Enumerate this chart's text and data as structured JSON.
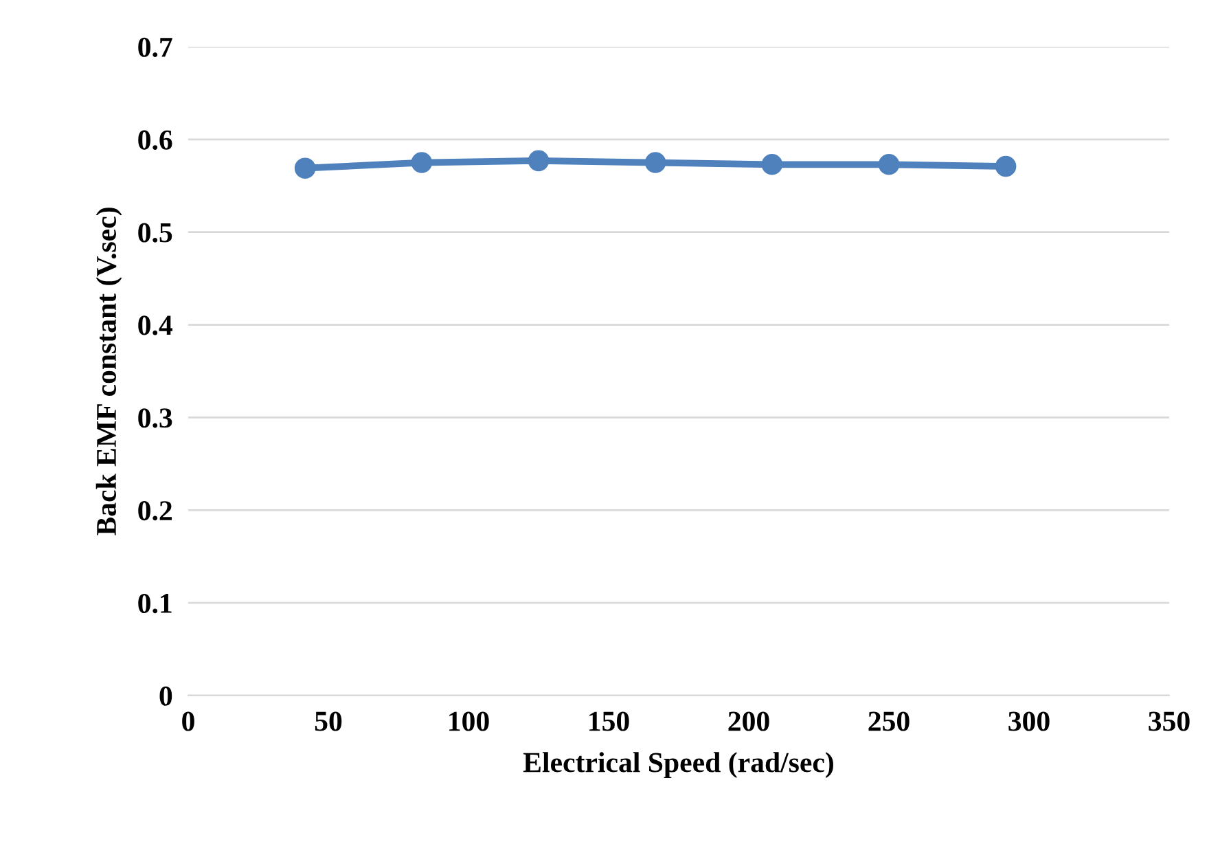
{
  "chart_data": {
    "type": "line",
    "xlabel": "Electrical Speed (rad/sec)",
    "ylabel": "Back EMF constant (V.sec)",
    "x": [
      41.7,
      83.3,
      125,
      166.7,
      208.3,
      250,
      291.7
    ],
    "series": [
      {
        "color": "#4f81bd",
        "values": [
          0.569,
          0.575,
          0.577,
          0.575,
          0.573,
          0.573,
          0.571
        ]
      }
    ],
    "xlim": [
      0,
      350
    ],
    "xticks": [
      0,
      50,
      100,
      150,
      200,
      250,
      300,
      350
    ],
    "ylim": [
      0,
      0.7
    ],
    "yticks": [
      {
        "value": 0,
        "label": "0"
      },
      0.1,
      0.2,
      0.3,
      0.4,
      0.5,
      0.6,
      0.7
    ],
    "grid": "y",
    "marker": "circle",
    "line_style": "solid"
  }
}
